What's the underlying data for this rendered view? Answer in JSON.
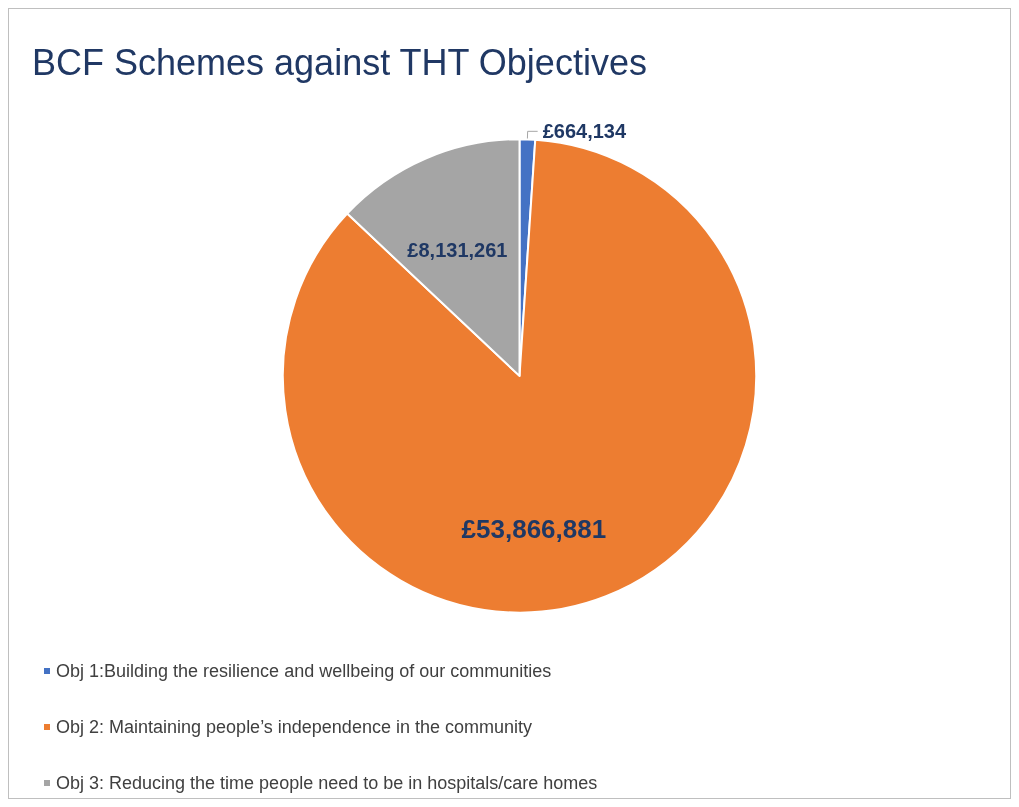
{
  "chart_data": {
    "type": "pie",
    "title": "BCF Schemes against THT Objectives",
    "categories": [
      "Obj 1:Building the resilience and wellbeing of our communities",
      "Obj 2: Maintaining people’s independence in the community",
      "Obj 3: Reducing the time people need to be in hospitals/care homes"
    ],
    "values": [
      664134,
      53866881,
      8131261
    ],
    "colors": [
      "#4472c4",
      "#ed7d31",
      "#a5a5a5"
    ],
    "value_labels": [
      "£664,134",
      "£53,866,881",
      "£8,131,261"
    ],
    "legend": "bottom left"
  }
}
